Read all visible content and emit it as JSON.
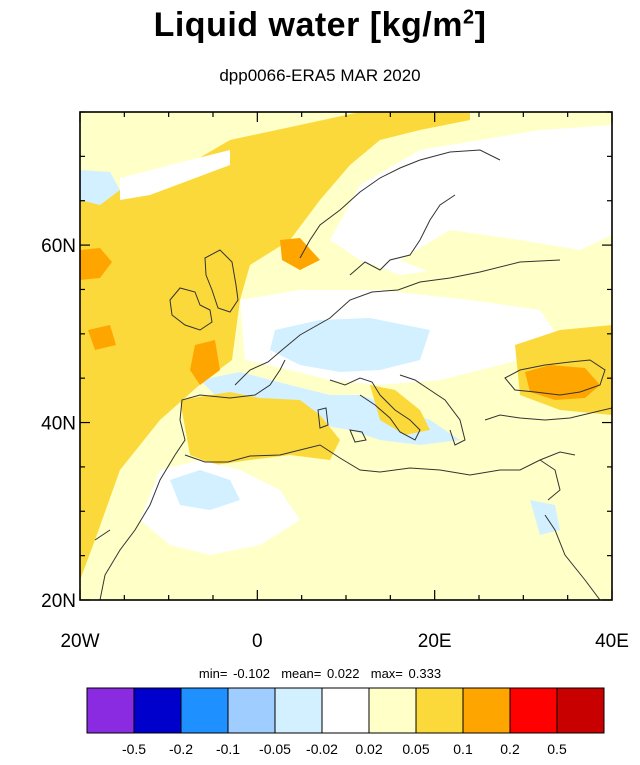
{
  "title_main": "Liquid water  [kg/m",
  "title_sup": "2",
  "title_end": "]",
  "subtitle": "dpp0066-ERA5 MAR 2020",
  "stats": {
    "min_label": "min=",
    "min_value": "-0.102",
    "mean_label": "mean=",
    "mean_value": "0.022",
    "max_label": "max=",
    "max_value": "0.333"
  },
  "chart_data": {
    "type": "heatmap",
    "title": "Liquid water  [kg/m2]",
    "subtitle": "dpp0066-ERA5 MAR 2020",
    "xlim": [
      -20,
      40
    ],
    "ylim": [
      20,
      75
    ],
    "x_ticks": [
      {
        "v": -20,
        "label": "20W"
      },
      {
        "v": 0,
        "label": "0"
      },
      {
        "v": 20,
        "label": "20E"
      },
      {
        "v": 40,
        "label": "40E"
      }
    ],
    "y_ticks": [
      {
        "v": 20,
        "label": "20N"
      },
      {
        "v": 40,
        "label": "40N"
      },
      {
        "v": 60,
        "label": "60N"
      }
    ],
    "colorbar": {
      "levels": [
        "-0.5",
        "-0.2",
        "-0.1",
        "-0.05",
        "-0.02",
        "0.02",
        "0.05",
        "0.1",
        "0.2",
        "0.5"
      ],
      "colors": [
        "#8a2be2",
        "#0000cd",
        "#1e90ff",
        "#a0cdff",
        "#d2f0ff",
        "#ffffff",
        "#ffffc8",
        "#fcd93a",
        "#ffa500",
        "#ff0000",
        "#c80000"
      ]
    },
    "statistics": {
      "min": -0.102,
      "mean": 0.022,
      "max": 0.333
    },
    "regions": [
      {
        "name": "north-atlantic",
        "level_index": 7
      },
      {
        "name": "iberia-west-coast",
        "level_index": 8
      },
      {
        "name": "scandinavia",
        "level_index": 5
      },
      {
        "name": "central-europe",
        "level_index": 4
      },
      {
        "name": "mediterranean",
        "level_index": 6
      },
      {
        "name": "north-africa",
        "level_index": 5
      },
      {
        "name": "black-sea",
        "level_index": 8
      },
      {
        "name": "eastern-europe",
        "level_index": 6
      }
    ]
  }
}
